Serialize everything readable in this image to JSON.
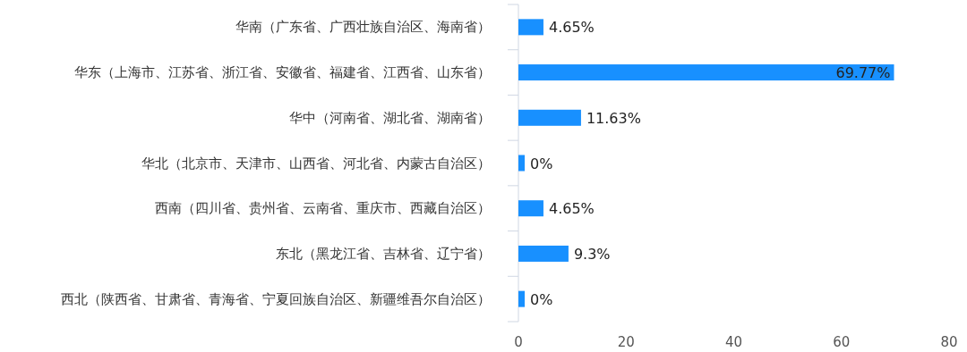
{
  "chart_data": {
    "type": "bar",
    "orientation": "horizontal",
    "categories": [
      "华南（广东省、广西壮族自治区、海南省）",
      "华东（上海市、江苏省、浙江省、安徽省、福建省、江西省、山东省）",
      "华中（河南省、湖北省、湖南省）",
      "华北（北京市、天津市、山西省、河北省、内蒙古自治区）",
      "西南（四川省、贵州省、云南省、重庆市、西藏自治区）",
      "东北（黑龙江省、吉林省、辽宁省）",
      "西北（陕西省、甘肃省、青海省、宁夏回族自治区、新疆维吾尔自治区）"
    ],
    "values": [
      4.65,
      69.77,
      11.63,
      0,
      4.65,
      9.3,
      0
    ],
    "value_labels": [
      "4.65%",
      "69.77%",
      "11.63%",
      "0%",
      "4.65%",
      "9.3%",
      "0%"
    ],
    "color": "#1890ff",
    "xlim": [
      0,
      80
    ],
    "xticks": [
      0,
      20,
      40,
      60,
      80
    ]
  }
}
